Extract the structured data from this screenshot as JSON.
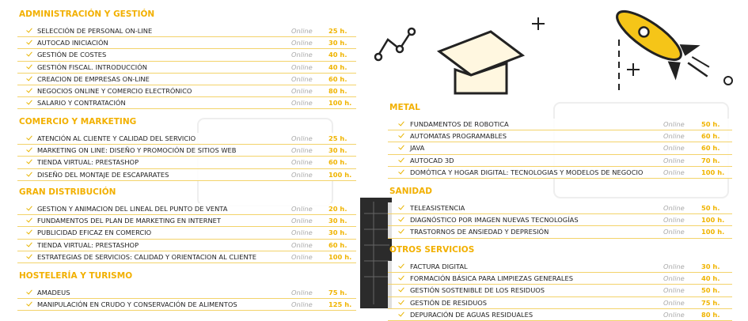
{
  "sections": [
    {
      "title": "ADMINISTRACIÓN Y GESTIÓN",
      "courses": [
        {
          "name": "SELECCIÓN DE PERSONAL ON-LINE",
          "mode": "Online",
          "hours": "25 h."
        },
        {
          "name": "AUTOCAD INICIACIÓN",
          "mode": "Online",
          "hours": "30 h."
        },
        {
          "name": "GESTIÓN DE COSTES",
          "mode": "Online",
          "hours": "40 h."
        },
        {
          "name": "GESTIÓN FISCAL. INTRODUCCIÓN",
          "mode": "Online",
          "hours": "40 h."
        },
        {
          "name": "CREACION DE EMPRESAS ON-LINE",
          "mode": "Online",
          "hours": "60 h."
        },
        {
          "name": "NEGOCIOS ONLINE Y COMERCIO ELECTRÓNICO",
          "mode": "Online",
          "hours": "80 h."
        },
        {
          "name": "SALARIO Y CONTRATACIÓN",
          "mode": "Online",
          "hours": "100 h."
        }
      ]
    },
    {
      "title": "COMERCIO Y MARKETING",
      "courses": [
        {
          "name": "ATENCIÓN AL CLIENTE Y CALIDAD DEL SERVICIO",
          "mode": "Online",
          "hours": "25 h."
        },
        {
          "name": "MARKETING ON LINE: DISEÑO Y PROMOCIÓN DE SITIOS WEB",
          "mode": "Online",
          "hours": "30 h."
        },
        {
          "name": "TIENDA VIRTUAL: PRESTASHOP",
          "mode": "Online",
          "hours": "60 h."
        },
        {
          "name": "DISEÑO DEL MONTAJE DE ESCAPARATES",
          "mode": "Online",
          "hours": "100 h."
        }
      ]
    },
    {
      "title": "GRAN DISTRIBUCIÓN",
      "courses": [
        {
          "name": "GESTION Y ANIMACION DEL LINEAL DEL PUNTO DE VENTA",
          "mode": "Online",
          "hours": "20 h."
        },
        {
          "name": "FUNDAMENTOS DEL PLAN DE MARKETING EN INTERNET",
          "mode": "Online",
          "hours": "30 h."
        },
        {
          "name": "PUBLICIDAD EFICAZ EN COMERCIO",
          "mode": "Online",
          "hours": "30 h."
        },
        {
          "name": "TIENDA VIRTUAL: PRESTASHOP",
          "mode": "Online",
          "hours": "60 h."
        },
        {
          "name": "ESTRATEGIAS DE SERVICIOS: CALIDAD Y ORIENTACION AL CLIENTE",
          "mode": "Online",
          "hours": "100 h."
        }
      ]
    },
    {
      "title": "HOSTELERÍA Y TURISMO",
      "courses": [
        {
          "name": "AMADEUS",
          "mode": "Online",
          "hours": "75 h."
        },
        {
          "name": "MANIPULACIÓN EN CRUDO Y CONSERVACIÓN DE ALIMENTOS",
          "mode": "Online",
          "hours": "125 h."
        }
      ]
    },
    {
      "title": "METAL",
      "courses": [
        {
          "name": "FUNDAMENTOS DE ROBOTICA",
          "mode": "Online",
          "hours": "50 h."
        },
        {
          "name": "AUTOMATAS PROGRAMABLES",
          "mode": "Online",
          "hours": "60 h."
        },
        {
          "name": "JAVA",
          "mode": "Online",
          "hours": "60 h."
        },
        {
          "name": "AUTOCAD 3D",
          "mode": "Online",
          "hours": "70 h."
        },
        {
          "name": "DOMÓTICA Y HOGAR DIGITAL: TECNOLOGIAS Y MODELOS DE NEGOCIO",
          "mode": "Online",
          "hours": "100 h."
        }
      ]
    },
    {
      "title": "SANIDAD",
      "courses": [
        {
          "name": "TELEASISTENCIA",
          "mode": "Online",
          "hours": "50 h."
        },
        {
          "name": "DIAGNÓSTICO POR IMAGEN NUEVAS TECNOLOGÍAS",
          "mode": "Online",
          "hours": "100 h."
        },
        {
          "name": "TRASTORNOS DE ANSIEDAD Y DEPRESIÓN",
          "mode": "Online",
          "hours": "100 h."
        }
      ]
    },
    {
      "title": "OTROS SERVICIOS",
      "courses": [
        {
          "name": "FACTURA DIGITAL",
          "mode": "Online",
          "hours": "30 h."
        },
        {
          "name": "FORMACIÓN BÁSICA PARA LIMPIEZAS GENERALES",
          "mode": "Online",
          "hours": "40 h."
        },
        {
          "name": "GESTIÓN SOSTENIBLE DE LOS RESIDUOS",
          "mode": "Online",
          "hours": "50 h."
        },
        {
          "name": "GESTIÓN DE RESIDUOS",
          "mode": "Online",
          "hours": "75 h."
        },
        {
          "name": "DEPURACIÓN DE AGUAS RESIDUALES",
          "mode": "Online",
          "hours": "80 h."
        }
      ]
    }
  ]
}
